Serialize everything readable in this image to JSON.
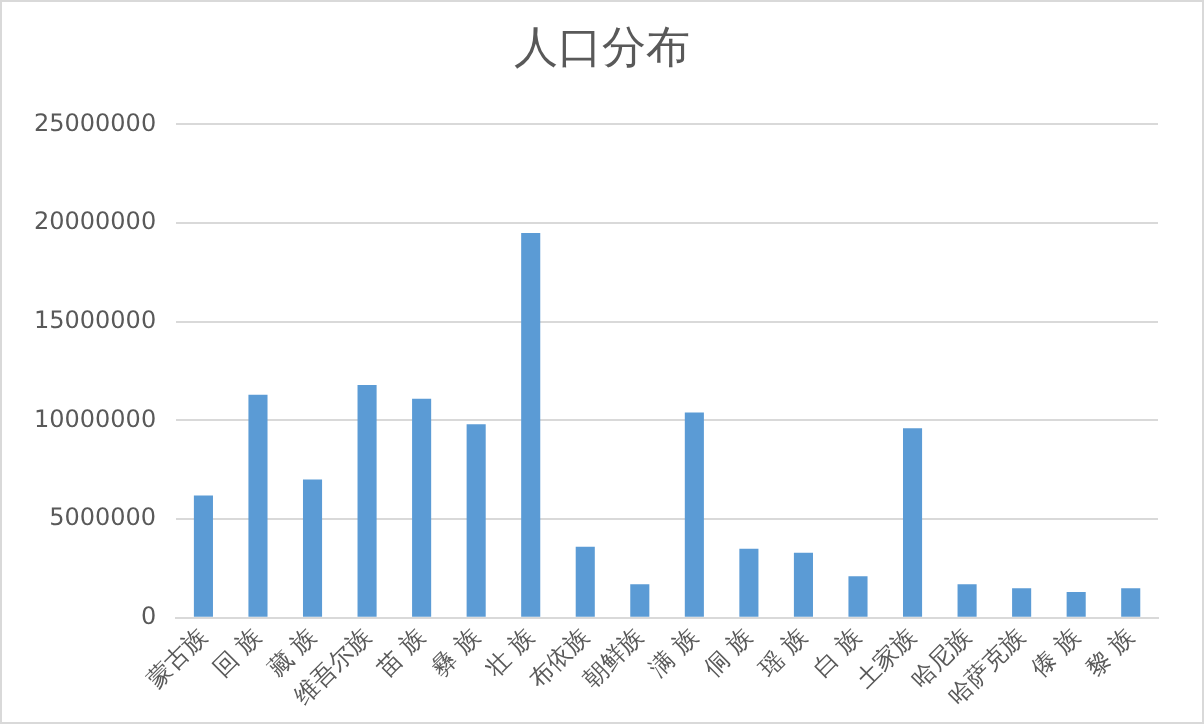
{
  "chart_data": {
    "type": "bar",
    "title": "人口分布",
    "categories": [
      "蒙古族",
      "回 族",
      "藏 族",
      "维吾尔族",
      "苗 族",
      "彝 族",
      "壮 族",
      "布依族",
      "朝鲜族",
      "满 族",
      "侗 族",
      "瑶 族",
      "白 族",
      "土家族",
      "哈尼族",
      "哈萨克族",
      "傣 族",
      "黎 族"
    ],
    "values": [
      6200000,
      11300000,
      7000000,
      11800000,
      11100000,
      9800000,
      19500000,
      3600000,
      1700000,
      10400000,
      3500000,
      3300000,
      2100000,
      9600000,
      1700000,
      1500000,
      1300000,
      1500000
    ],
    "color": "#5b9bd5",
    "ylim": [
      0,
      25000000
    ],
    "yticks": [
      0,
      5000000,
      10000000,
      15000000,
      20000000,
      25000000
    ],
    "grid": "y",
    "legend": false
  }
}
